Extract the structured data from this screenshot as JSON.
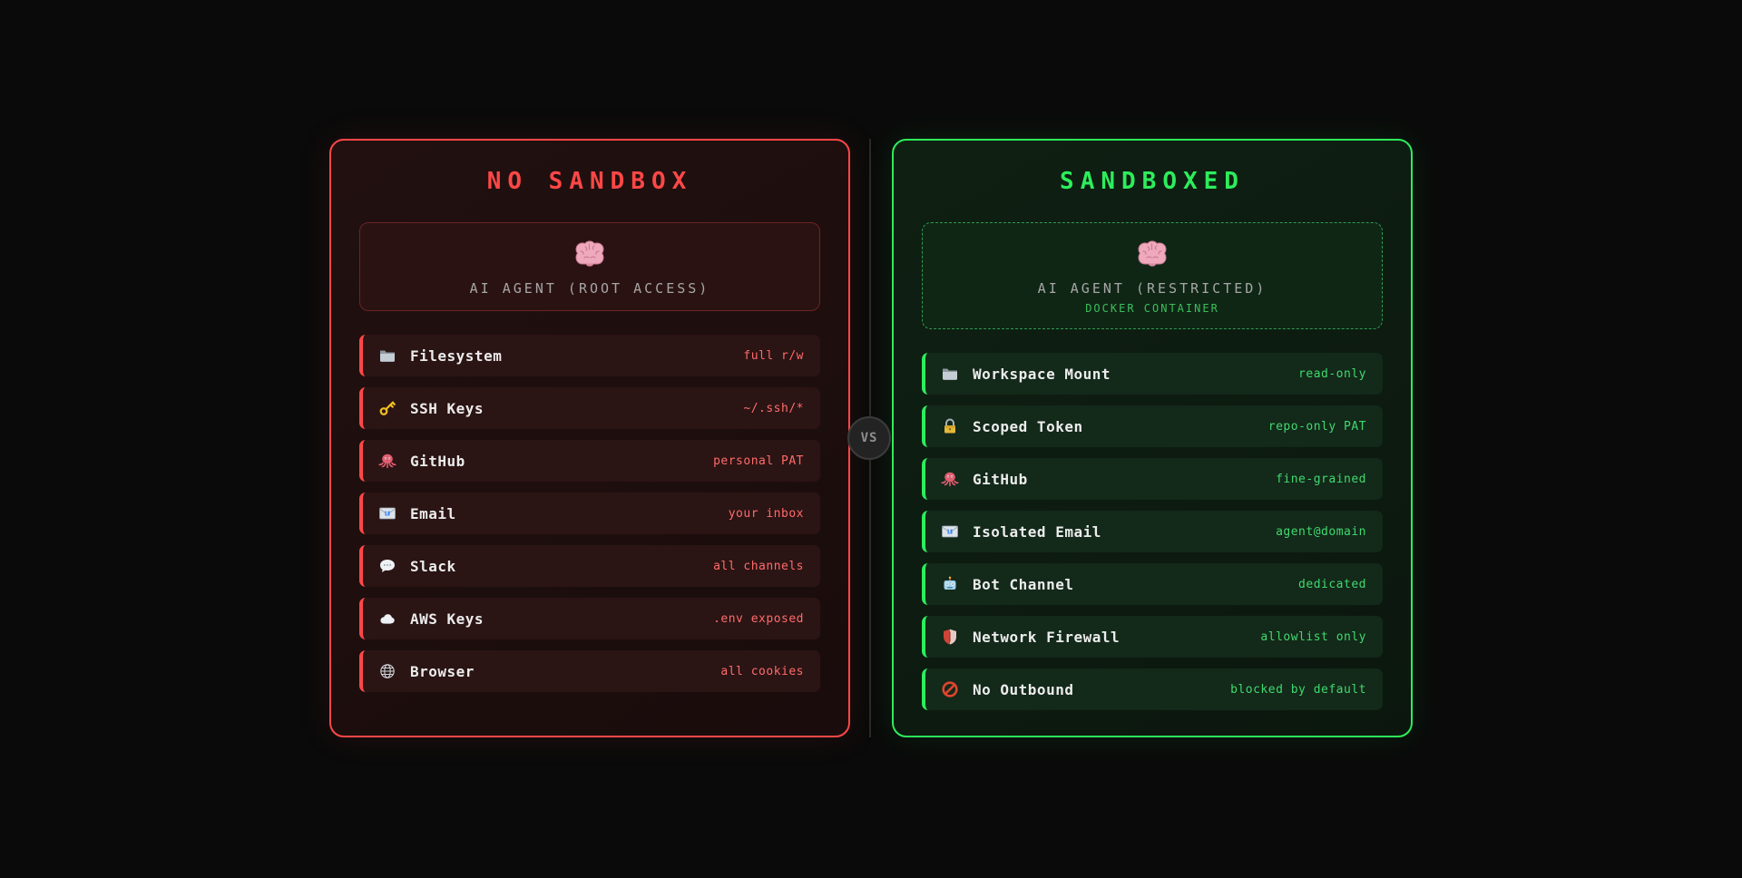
{
  "page": {
    "background": "#0a0a0a"
  },
  "divider": {
    "vs_label": "VS",
    "line_color": "#2a2a2a"
  },
  "panels": [
    {
      "id": "no-sandbox",
      "title": "NO SANDBOX",
      "colors": {
        "accent": "#ff4747",
        "title": "#ff4747",
        "value": "#ff6b6b",
        "row_bg": "#2b1414",
        "sub": "#3bbf5c"
      },
      "agent": {
        "icon": "brain",
        "label": "AI AGENT (ROOT ACCESS)"
      },
      "rows": [
        {
          "icon": "folder",
          "label": "Filesystem",
          "value": "full r/w"
        },
        {
          "icon": "key",
          "label": "SSH Keys",
          "value": "~/.ssh/*"
        },
        {
          "icon": "octopus",
          "label": "GitHub",
          "value": "personal PAT"
        },
        {
          "icon": "email",
          "label": "Email",
          "value": "your inbox"
        },
        {
          "icon": "speech-balloon",
          "label": "Slack",
          "value": "all channels"
        },
        {
          "icon": "cloud",
          "label": "AWS Keys",
          "value": ".env exposed"
        },
        {
          "icon": "globe",
          "label": "Browser",
          "value": "all cookies"
        }
      ]
    },
    {
      "id": "sandboxed",
      "title": "SANDBOXED",
      "colors": {
        "accent": "#2ded5c",
        "title": "#2ded5c",
        "value": "#40d96e",
        "row_bg": "#13291a",
        "sub": "#3bbf5c"
      },
      "agent": {
        "icon": "brain",
        "label": "AI AGENT (RESTRICTED)",
        "sublabel": "DOCKER CONTAINER"
      },
      "rows": [
        {
          "icon": "folder",
          "label": "Workspace Mount",
          "value": "read-only"
        },
        {
          "icon": "lock",
          "label": "Scoped Token",
          "value": "repo-only PAT"
        },
        {
          "icon": "octopus",
          "label": "GitHub",
          "value": "fine-grained"
        },
        {
          "icon": "email",
          "label": "Isolated Email",
          "value": "agent@domain"
        },
        {
          "icon": "robot",
          "label": "Bot Channel",
          "value": "dedicated"
        },
        {
          "icon": "shield",
          "label": "Network Firewall",
          "value": "allowlist only"
        },
        {
          "icon": "no-entry",
          "label": "No Outbound",
          "value": "blocked by default"
        }
      ]
    }
  ]
}
